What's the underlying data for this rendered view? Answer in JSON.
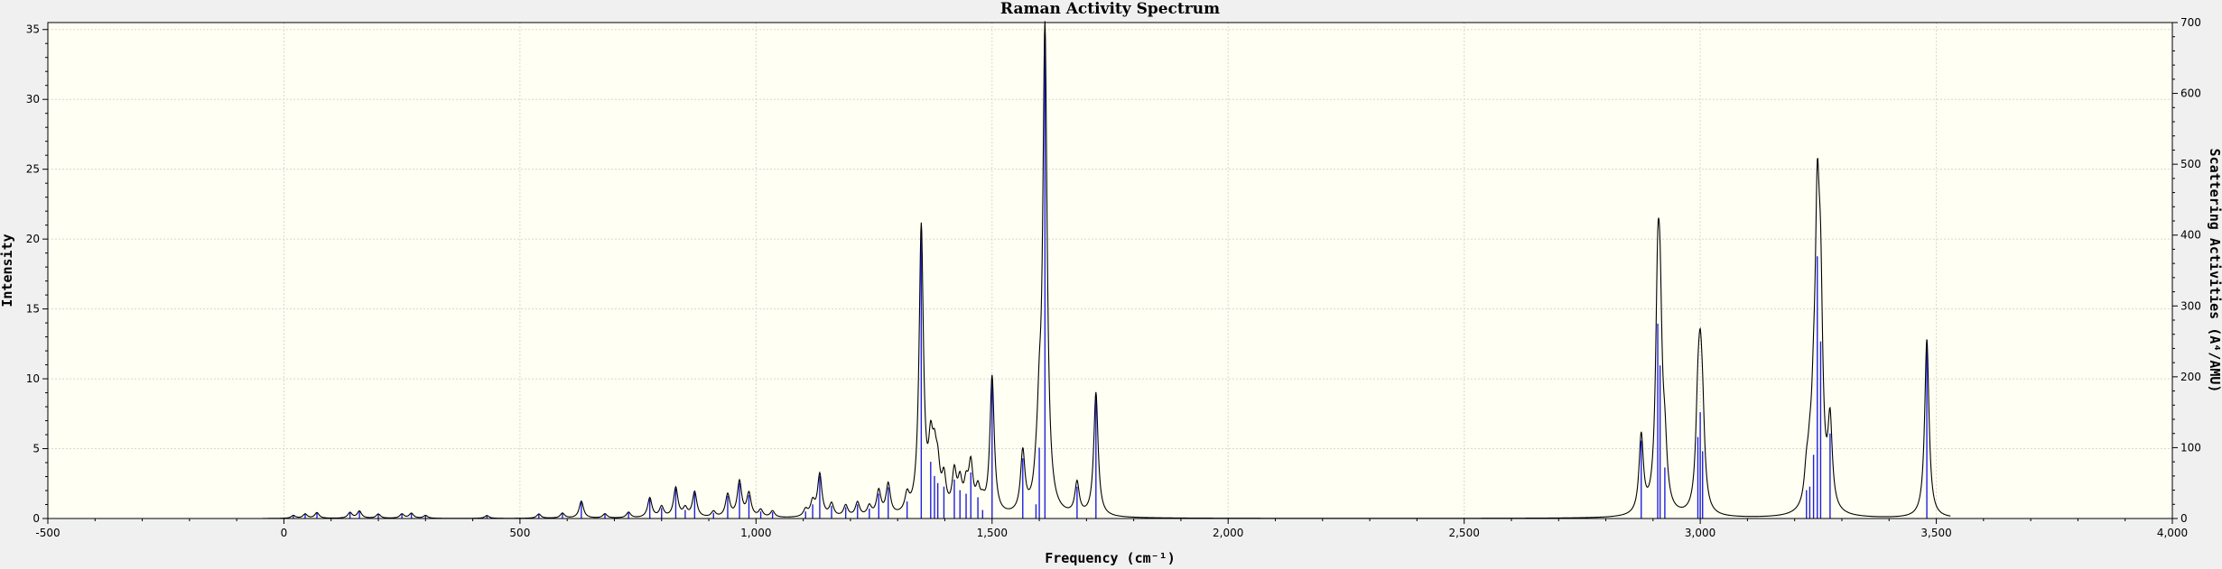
{
  "chart_data": {
    "type": "line",
    "title": "Raman Activity Spectrum",
    "xlabel": "Frequency (cm⁻¹)",
    "ylabel": "Intensity",
    "y2label": "Scattering Activities (A⁴/AMU)",
    "xlim": [
      -500,
      4000
    ],
    "ylim": [
      0,
      35.5
    ],
    "y2lim": [
      0,
      700
    ],
    "grid": true,
    "x_ticks": [
      -500,
      0,
      500,
      1000,
      1500,
      2000,
      2500,
      3000,
      3500,
      4000
    ],
    "x_tick_labels": [
      "-500",
      "0",
      "500",
      "1,000",
      "1,500",
      "2,000",
      "2,500",
      "3,000",
      "3,500",
      "4,000"
    ],
    "y_ticks": [
      0,
      5,
      10,
      15,
      20,
      25,
      30,
      35
    ],
    "y_tick_labels": [
      "0",
      "5",
      "10",
      "15",
      "20",
      "25",
      "30",
      "35"
    ],
    "y2_ticks": [
      0,
      100,
      200,
      300,
      400,
      500,
      600,
      700
    ],
    "y2_tick_labels": [
      "0",
      "100",
      "200",
      "300",
      "400",
      "500",
      "600",
      "700"
    ],
    "colors": {
      "spectrum": "#000000",
      "sticks": "#2020e0",
      "plot_bg": "#fffff3",
      "page_bg": "#f0f0f0"
    },
    "spectrum_range": [
      -45,
      3530
    ],
    "peaks": [
      {
        "x": 20,
        "s": 4
      },
      {
        "x": 45,
        "s": 6
      },
      {
        "x": 70,
        "s": 8
      },
      {
        "x": 140,
        "s": 8
      },
      {
        "x": 160,
        "s": 10
      },
      {
        "x": 200,
        "s": 6
      },
      {
        "x": 250,
        "s": 6
      },
      {
        "x": 270,
        "s": 7
      },
      {
        "x": 300,
        "s": 4
      },
      {
        "x": 430,
        "s": 4
      },
      {
        "x": 540,
        "s": 6
      },
      {
        "x": 590,
        "s": 7
      },
      {
        "x": 630,
        "s": 24
      },
      {
        "x": 680,
        "s": 6
      },
      {
        "x": 730,
        "s": 8
      },
      {
        "x": 775,
        "s": 28
      },
      {
        "x": 800,
        "s": 15
      },
      {
        "x": 830,
        "s": 42
      },
      {
        "x": 850,
        "s": 12
      },
      {
        "x": 870,
        "s": 36
      },
      {
        "x": 910,
        "s": 8
      },
      {
        "x": 940,
        "s": 32
      },
      {
        "x": 965,
        "s": 50
      },
      {
        "x": 985,
        "s": 33
      },
      {
        "x": 1010,
        "s": 10
      },
      {
        "x": 1035,
        "s": 9
      },
      {
        "x": 1105,
        "s": 10
      },
      {
        "x": 1120,
        "s": 20
      },
      {
        "x": 1135,
        "s": 60
      },
      {
        "x": 1160,
        "s": 18
      },
      {
        "x": 1190,
        "s": 16
      },
      {
        "x": 1215,
        "s": 20
      },
      {
        "x": 1240,
        "s": 14
      },
      {
        "x": 1260,
        "s": 35
      },
      {
        "x": 1280,
        "s": 44
      },
      {
        "x": 1320,
        "s": 24
      },
      {
        "x": 1350,
        "s": 405
      },
      {
        "x": 1370,
        "s": 80
      },
      {
        "x": 1378,
        "s": 60
      },
      {
        "x": 1385,
        "s": 50
      },
      {
        "x": 1398,
        "s": 45
      },
      {
        "x": 1420,
        "s": 55
      },
      {
        "x": 1432,
        "s": 40
      },
      {
        "x": 1445,
        "s": 35
      },
      {
        "x": 1455,
        "s": 65
      },
      {
        "x": 1470,
        "s": 30
      },
      {
        "x": 1480,
        "s": 12
      },
      {
        "x": 1500,
        "s": 195
      },
      {
        "x": 1565,
        "s": 85
      },
      {
        "x": 1593,
        "s": 20
      },
      {
        "x": 1600,
        "s": 100
      },
      {
        "x": 1612,
        "s": 680
      },
      {
        "x": 1680,
        "s": 45
      },
      {
        "x": 1720,
        "s": 175
      },
      {
        "x": 2875,
        "s": 110
      },
      {
        "x": 2910,
        "s": 275
      },
      {
        "x": 2915,
        "s": 216
      },
      {
        "x": 2925,
        "s": 72
      },
      {
        "x": 2995,
        "s": 115
      },
      {
        "x": 3000,
        "s": 150
      },
      {
        "x": 3005,
        "s": 95
      },
      {
        "x": 3225,
        "s": 40
      },
      {
        "x": 3232,
        "s": 45
      },
      {
        "x": 3240,
        "s": 90
      },
      {
        "x": 3248,
        "s": 370
      },
      {
        "x": 3255,
        "s": 250
      },
      {
        "x": 3275,
        "s": 120
      },
      {
        "x": 3480,
        "s": 252
      }
    ]
  }
}
